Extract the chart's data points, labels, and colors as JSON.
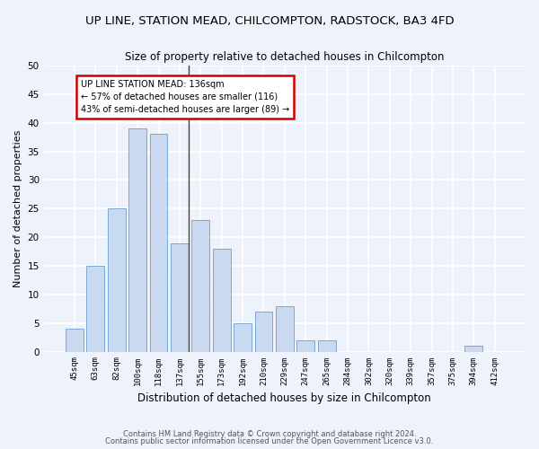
{
  "title_line1": "UP LINE, STATION MEAD, CHILCOMPTON, RADSTOCK, BA3 4FD",
  "title_line2": "Size of property relative to detached houses in Chilcompton",
  "xlabel": "Distribution of detached houses by size in Chilcompton",
  "ylabel": "Number of detached properties",
  "categories": [
    "45sqm",
    "63sqm",
    "82sqm",
    "100sqm",
    "118sqm",
    "137sqm",
    "155sqm",
    "173sqm",
    "192sqm",
    "210sqm",
    "229sqm",
    "247sqm",
    "265sqm",
    "284sqm",
    "302sqm",
    "320sqm",
    "339sqm",
    "357sqm",
    "375sqm",
    "394sqm",
    "412sqm"
  ],
  "values": [
    4,
    15,
    25,
    39,
    38,
    19,
    23,
    18,
    5,
    7,
    8,
    2,
    2,
    0,
    0,
    0,
    0,
    0,
    0,
    1,
    0
  ],
  "bar_color": "#c9d9f0",
  "bar_edge_color": "#7aa8d8",
  "marker_index": 5,
  "marker_label": "UP LINE STATION MEAD: 136sqm",
  "marker_line_color": "#444444",
  "annotation_line1": "← 57% of detached houses are smaller (116)",
  "annotation_line2": "43% of semi-detached houses are larger (89) →",
  "annotation_box_facecolor": "#ffffff",
  "annotation_box_edgecolor": "#cc0000",
  "ylim": [
    0,
    50
  ],
  "yticks": [
    0,
    5,
    10,
    15,
    20,
    25,
    30,
    35,
    40,
    45,
    50
  ],
  "bg_color": "#eef2fa",
  "grid_color": "#ffffff",
  "footer_line1": "Contains HM Land Registry data © Crown copyright and database right 2024.",
  "footer_line2": "Contains public sector information licensed under the Open Government Licence v3.0."
}
